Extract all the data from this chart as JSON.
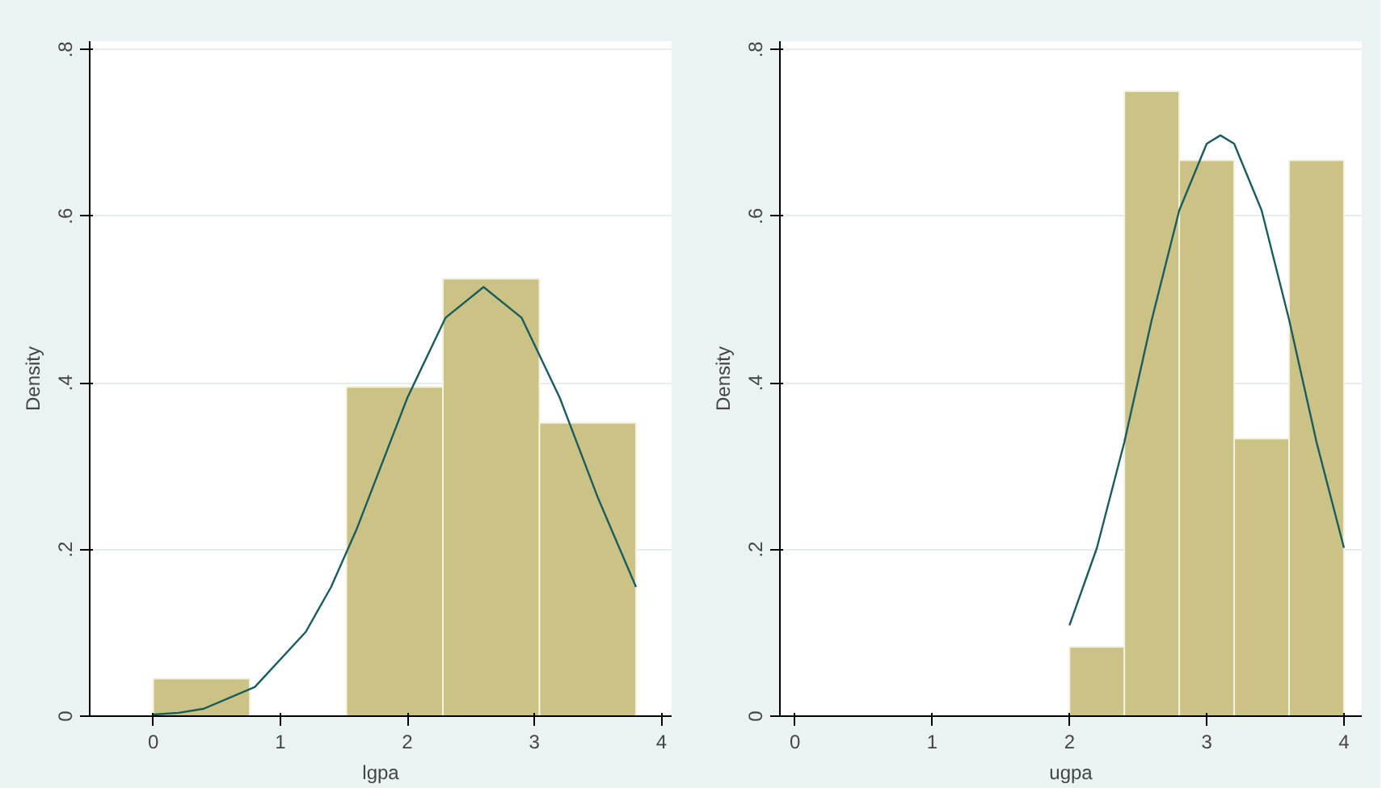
{
  "chart_data": [
    {
      "type": "histogram",
      "xlabel": "lgpa",
      "ylabel": "Density",
      "xlim": [
        -0.5,
        4.08
      ],
      "ylim": [
        0,
        0.81
      ],
      "xticks": [
        0,
        1,
        2,
        3,
        4
      ],
      "yticks": [
        0,
        {
          "value": 0.2,
          "label": ".2"
        },
        {
          "value": 0.4,
          "label": ".4"
        },
        {
          "value": 0.6,
          "label": ".6"
        },
        {
          "value": 0.8,
          "label": ".8"
        }
      ],
      "grid": "y",
      "series": [
        {
          "color": "#cbc385",
          "bins": [
            0,
            0.76,
            1.52,
            2.28,
            3.04,
            3.8
          ],
          "values": [
            0.045,
            0,
            0.395,
            0.525,
            0.352
          ]
        },
        {
          "type": "line",
          "color": "#1a5c5e",
          "x": [
            0,
            0.2,
            0.4,
            0.8,
            1.2,
            1.4,
            1.6,
            2.0,
            2.3,
            2.6,
            2.9,
            3.2,
            3.5,
            3.8
          ],
          "values": [
            0.002,
            0.004,
            0.009,
            0.035,
            0.101,
            0.155,
            0.224,
            0.382,
            0.478,
            0.515,
            0.478,
            0.382,
            0.262,
            0.155
          ]
        }
      ]
    },
    {
      "type": "histogram",
      "xlabel": "ugpa",
      "ylabel": "Density",
      "xlim": [
        -0.11,
        4.13
      ],
      "ylim": [
        0,
        0.81
      ],
      "xticks": [
        0,
        1,
        2,
        3,
        4
      ],
      "yticks": [
        0,
        {
          "value": 0.2,
          "label": ".2"
        },
        {
          "value": 0.4,
          "label": ".4"
        },
        {
          "value": 0.6,
          "label": ".6"
        },
        {
          "value": 0.8,
          "label": ".8"
        }
      ],
      "grid": "y",
      "series": [
        {
          "color": "#cbc385",
          "bins": [
            2,
            2.4,
            2.8,
            3.2,
            3.6,
            4
          ],
          "values": [
            0.083,
            0.75,
            0.667,
            0.333,
            0.667
          ]
        },
        {
          "type": "line",
          "color": "#1a5c5e",
          "x": [
            2.0,
            2.2,
            2.4,
            2.6,
            2.8,
            3.0,
            3.1,
            3.2,
            3.4,
            3.6,
            3.8,
            4.0
          ],
          "values": [
            0.109,
            0.202,
            0.329,
            0.476,
            0.607,
            0.687,
            0.697,
            0.687,
            0.607,
            0.476,
            0.329,
            0.202
          ]
        }
      ]
    }
  ]
}
